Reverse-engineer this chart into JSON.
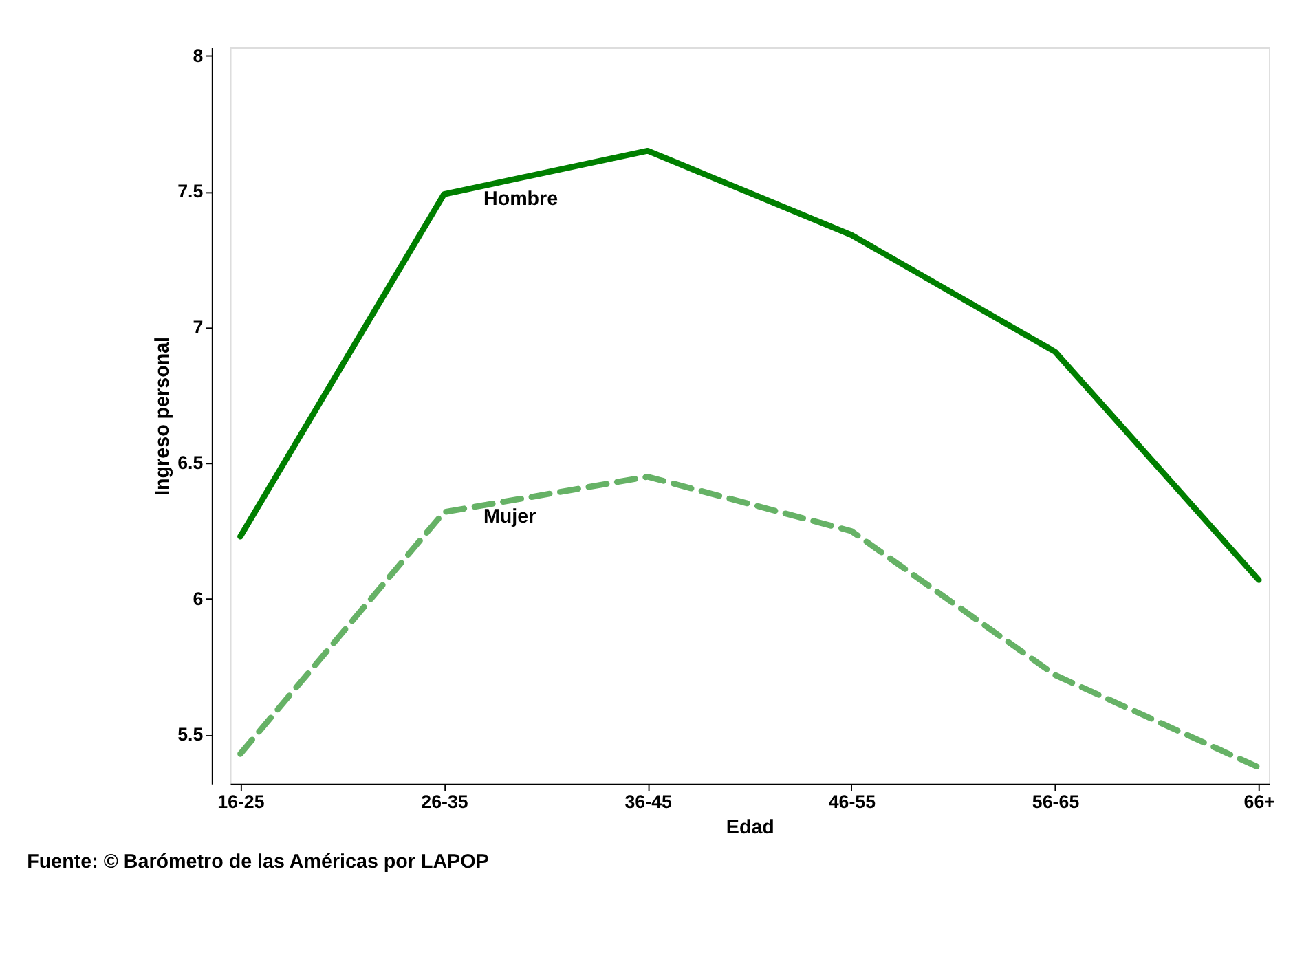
{
  "chart_data": {
    "type": "line",
    "xlabel": "Edad",
    "ylabel": "Ingreso personal",
    "categories": [
      "16-25",
      "26-35",
      "36-45",
      "46-55",
      "56-65",
      "66+"
    ],
    "series": [
      {
        "name": "Hombre",
        "color": "#007f00",
        "line_style": "solid",
        "values": [
          6.23,
          7.49,
          7.65,
          7.34,
          6.91,
          6.07
        ]
      },
      {
        "name": "Mujer",
        "color": "#66b266",
        "line_style": "dashed",
        "values": [
          5.43,
          6.32,
          6.45,
          6.25,
          5.72,
          5.38
        ]
      }
    ],
    "ylim": [
      5.32,
      8.03
    ],
    "yticks": [
      5.5,
      6,
      6.5,
      7,
      7.5,
      8
    ],
    "grid": false,
    "marker": "none",
    "annotations": [
      "Fuente: © Barómetro de las Américas por LAPOP"
    ]
  }
}
